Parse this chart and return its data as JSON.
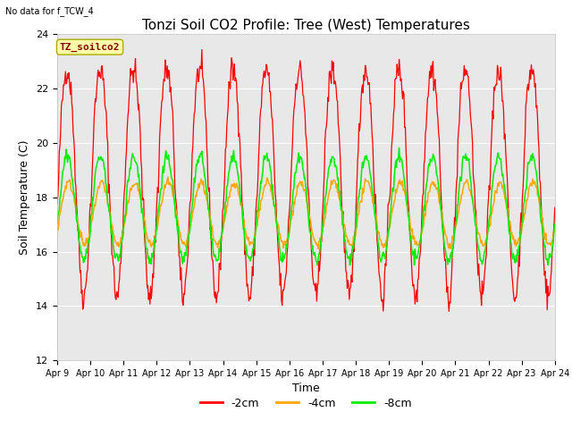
{
  "title": "Tonzi Soil CO2 Profile: Tree (West) Temperatures",
  "subtitle": "No data for f_TCW_4",
  "ylabel": "Soil Temperature (C)",
  "xlabel": "Time",
  "ylim": [
    12,
    24
  ],
  "yticks": [
    12,
    14,
    16,
    18,
    20,
    22,
    24
  ],
  "xlim": [
    0,
    15
  ],
  "xtick_labels": [
    "Apr 9",
    "Apr 10",
    "Apr 11",
    "Apr 12",
    "Apr 13",
    "Apr 14",
    "Apr 15",
    "Apr 16",
    "Apr 17",
    "Apr 18",
    "Apr 19",
    "Apr 20",
    "Apr 21",
    "Apr 22",
    "Apr 23",
    "Apr 24"
  ],
  "legend_label": "TZ_soilco2",
  "series_labels": [
    "-2cm",
    "-4cm",
    "-8cm"
  ],
  "series_colors": [
    "#ff0000",
    "#ffa500",
    "#00ee00"
  ],
  "background_color": "#ffffff",
  "plot_bg_color": "#e8e8e8",
  "title_fontsize": 11,
  "axis_fontsize": 9,
  "tick_fontsize": 8,
  "legend_box_color": "#ffffaa",
  "legend_text_color": "#880000"
}
